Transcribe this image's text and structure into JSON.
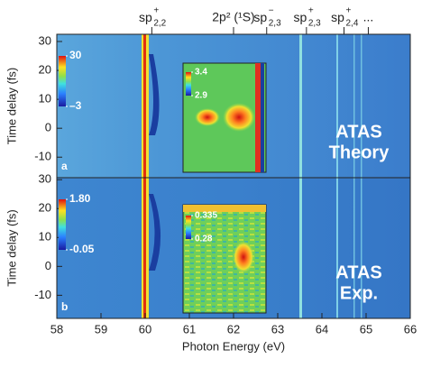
{
  "chart_data": {
    "type": "heatmap",
    "xlabel": "Photon Energy (eV)",
    "xlim": [
      58,
      66
    ],
    "xticks": [
      58,
      59,
      60,
      61,
      62,
      63,
      64,
      65,
      66
    ],
    "annotations": [
      {
        "x": 60.15,
        "base": "sp",
        "sup": "+",
        "sub": "2,2"
      },
      {
        "x": 62.0,
        "text": "2p² (¹S)"
      },
      {
        "x": 62.75,
        "base": "sp",
        "sup": "−",
        "sub": "2,3"
      },
      {
        "x": 63.65,
        "base": "sp",
        "sup": "+",
        "sub": "2,3"
      },
      {
        "x": 64.5,
        "base": "sp",
        "sup": "+",
        "sub": "2,4"
      },
      {
        "x": 65.05,
        "text": "..."
      }
    ],
    "panels": [
      {
        "label": "a",
        "ylabel": "Time delay (fs)",
        "ylim": [
          -17.1,
          32.5
        ],
        "yticks": [
          -10,
          0,
          10,
          20,
          30
        ],
        "text": [
          "ATAS",
          "Theory"
        ],
        "colorbar": {
          "ticks": [
            {
              "value": -3,
              "label": "–3"
            },
            30
          ]
        },
        "inset_colorbar": {
          "ticks": [
            2.9,
            3.4
          ]
        }
      },
      {
        "label": "b",
        "ylabel": "Time delay (fs)",
        "ylim": [
          -18,
          30.7
        ],
        "yticks": [
          -10,
          0,
          10,
          20,
          30
        ],
        "text": [
          "ATAS",
          "Exp."
        ],
        "colorbar": {
          "ticks": [
            -0.05,
            {
              "value": 1.8,
              "label": "1.80"
            }
          ]
        },
        "inset_colorbar": {
          "ticks": [
            0.28,
            0.335
          ]
        }
      }
    ]
  }
}
